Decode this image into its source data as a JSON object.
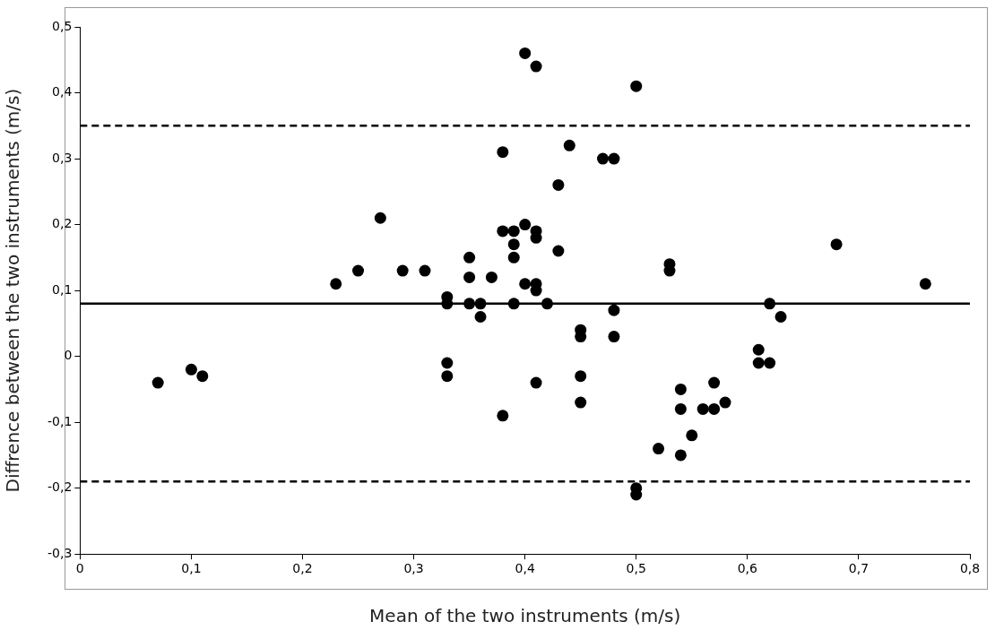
{
  "chart_data": {
    "type": "scatter",
    "xlabel": "Mean of the two instruments (m/s)",
    "ylabel": "Diffrence between the two instruments (m/s)",
    "series": [
      {
        "color": "#000000",
        "x": [
          0.07,
          0.1,
          0.11,
          0.23,
          0.25,
          0.27,
          0.29,
          0.31,
          0.33,
          0.33,
          0.33,
          0.33,
          0.35,
          0.35,
          0.35,
          0.36,
          0.36,
          0.37,
          0.38,
          0.38,
          0.38,
          0.39,
          0.39,
          0.39,
          0.39,
          0.4,
          0.4,
          0.4,
          0.41,
          0.41,
          0.41,
          0.41,
          0.41,
          0.41,
          0.42,
          0.43,
          0.43,
          0.44,
          0.45,
          0.45,
          0.45,
          0.45,
          0.47,
          0.48,
          0.48,
          0.48,
          0.5,
          0.5,
          0.5,
          0.52,
          0.53,
          0.53,
          0.54,
          0.54,
          0.54,
          0.55,
          0.56,
          0.57,
          0.57,
          0.58,
          0.61,
          0.61,
          0.62,
          0.62,
          0.63,
          0.68,
          0.76
        ],
        "values": [
          -0.04,
          -0.02,
          -0.03,
          0.11,
          0.13,
          0.21,
          0.13,
          0.13,
          0.09,
          0.08,
          -0.01,
          -0.03,
          0.15,
          0.12,
          0.08,
          0.08,
          0.06,
          0.12,
          0.31,
          0.19,
          -0.09,
          0.19,
          0.17,
          0.15,
          0.08,
          0.46,
          0.2,
          0.11,
          0.44,
          0.19,
          0.18,
          0.11,
          0.1,
          -0.04,
          0.08,
          0.26,
          0.16,
          0.32,
          0.04,
          0.03,
          -0.03,
          -0.07,
          0.3,
          0.3,
          0.07,
          0.03,
          0.41,
          -0.2,
          -0.21,
          -0.14,
          0.14,
          0.13,
          -0.05,
          -0.08,
          -0.15,
          -0.12,
          -0.08,
          -0.04,
          -0.08,
          -0.07,
          0.01,
          -0.01,
          0.08,
          -0.01,
          0.06,
          0.17,
          0.11
        ]
      }
    ],
    "xlim": [
      0,
      0.8
    ],
    "ylim": [
      -0.3,
      0.5
    ],
    "xticks": [
      0,
      {
        "value": 0.1,
        "label": "0,1"
      },
      {
        "value": 0.2,
        "label": "0,2"
      },
      {
        "value": 0.3,
        "label": "0,3"
      },
      {
        "value": 0.4,
        "label": "0,4"
      },
      {
        "value": 0.5,
        "label": "0,5"
      },
      {
        "value": 0.6,
        "label": "0,6"
      },
      {
        "value": 0.7,
        "label": "0,7"
      },
      {
        "value": 0.8,
        "label": "0,8"
      }
    ],
    "yticks": [
      {
        "value": -0.3,
        "label": "-0,3"
      },
      {
        "value": -0.2,
        "label": "-0,2"
      },
      {
        "value": -0.1,
        "label": "-0,1"
      },
      0,
      {
        "value": 0.1,
        "label": "0,1"
      },
      {
        "value": 0.2,
        "label": "0,2"
      },
      {
        "value": 0.3,
        "label": "0,3"
      },
      {
        "value": 0.4,
        "label": "0,4"
      },
      {
        "value": 0.5,
        "label": "0,5"
      }
    ],
    "ref_lines": [
      {
        "axis": "y",
        "value": 0.35,
        "color": "#000000",
        "line_style": "dashed"
      },
      {
        "axis": "y",
        "value": 0.08,
        "color": "#000000",
        "line_style": "solid"
      },
      {
        "axis": "y",
        "value": -0.19,
        "color": "#000000",
        "line_style": "dashed"
      }
    ],
    "grid": false,
    "legend": false,
    "marker": "circle"
  }
}
